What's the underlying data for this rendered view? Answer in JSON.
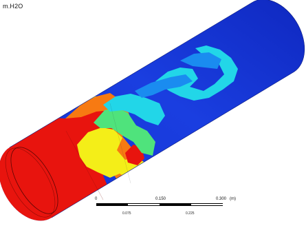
{
  "figure": {
    "variable_label": "m.H2O",
    "scale": {
      "ticks": [
        "0",
        "0.150",
        "0.300"
      ],
      "unit": "(m)",
      "sub_ticks": [
        "0.075",
        "0.225"
      ]
    },
    "colors": {
      "high": "#e8140e",
      "orange": "#f77a12",
      "yellow": "#f4ee18",
      "green": "#4fe37c",
      "cyan": "#22d6e8",
      "light_blue": "#1a8cf0",
      "low": "#1432d4"
    }
  }
}
